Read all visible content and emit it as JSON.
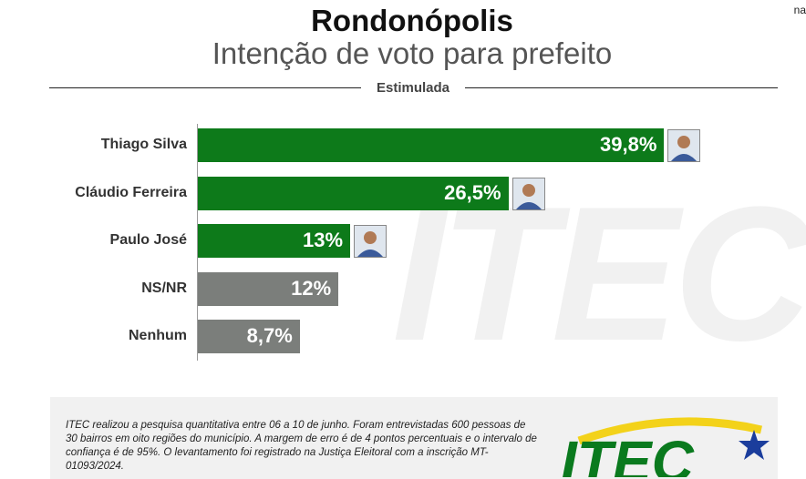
{
  "corner_text": "na",
  "header": {
    "title": "Rondonópolis",
    "subtitle": "Intenção de voto para prefeito",
    "section_label": "Estimulada"
  },
  "watermark_text": "ITEC",
  "colors": {
    "candidate_bar": "#0d7a1a",
    "other_bar": "#7b7e7b"
  },
  "chart_data": {
    "type": "bar",
    "orientation": "horizontal",
    "categories": [
      "Thiago Silva",
      "Cláudio Ferreira",
      "Paulo José",
      "NS/NR",
      "Nenhum"
    ],
    "values": [
      39.8,
      26.5,
      13,
      12,
      8.7
    ],
    "value_labels": [
      "39,8%",
      "26,5%",
      "13%",
      "12%",
      "8,7%"
    ],
    "bar_colors": [
      "#0d7a1a",
      "#0d7a1a",
      "#0d7a1a",
      "#7b7e7b",
      "#7b7e7b"
    ],
    "avatars": [
      true,
      true,
      true,
      false,
      false
    ],
    "xlim": [
      0,
      40
    ],
    "grid": false,
    "legend": "none"
  },
  "footer": {
    "note": "ITEC realizou a pesquisa quantitativa entre 06 a 10 de junho. Foram entrevistadas 600 pessoas de 30 bairros em oito regiões do município. A margem de erro é de 4 pontos percentuais e o intervalo de confiança é de 95%. O levantamento foi registrado na Justiça Eleitoral com a inscrição MT-01093/2024.",
    "logo_text": "ITEC"
  }
}
